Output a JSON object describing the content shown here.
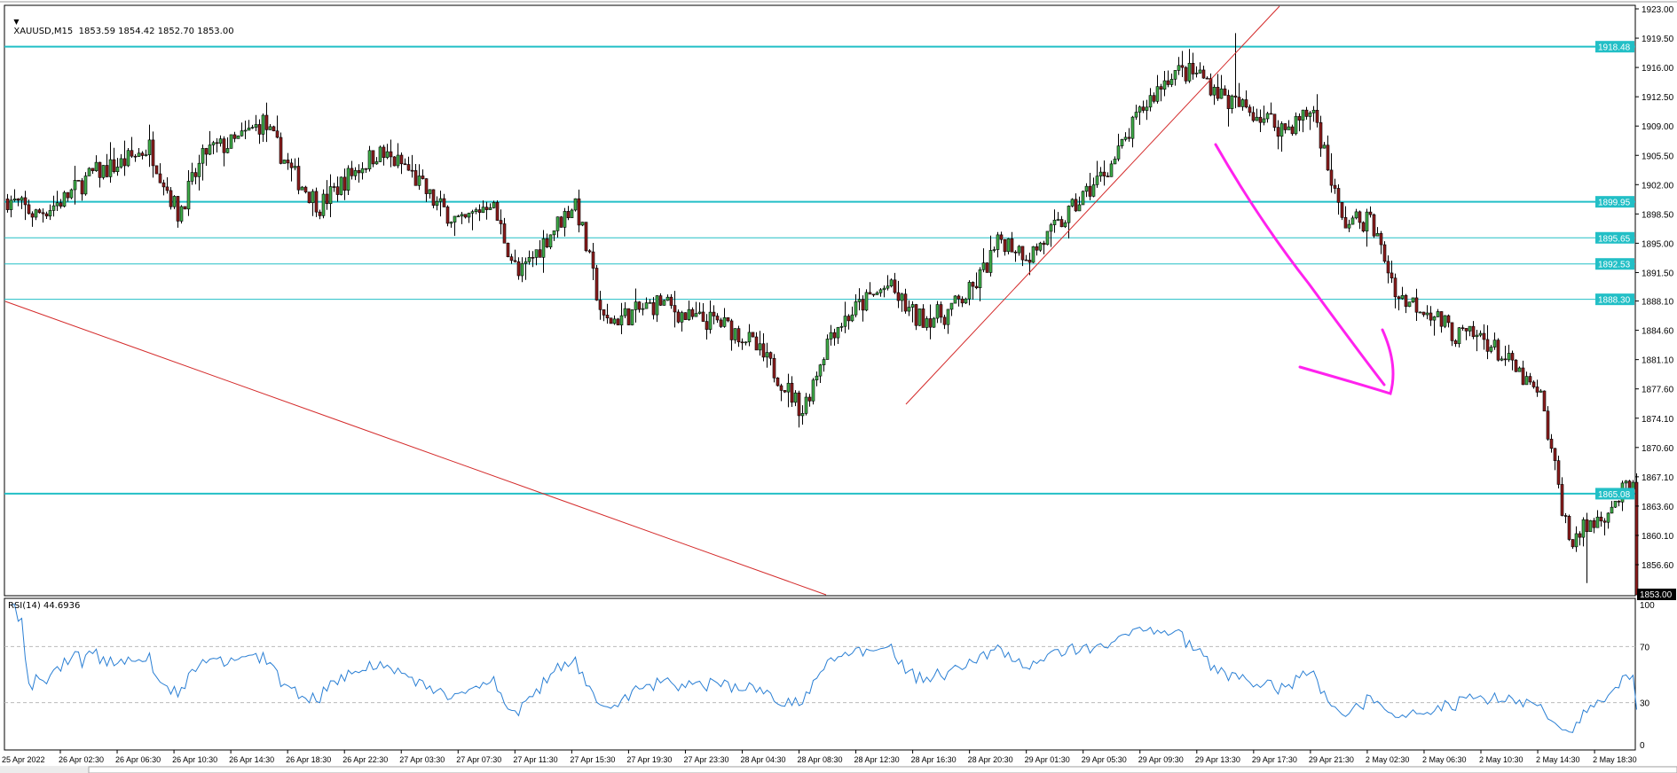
{
  "header": {
    "symbol_info": "XAUUSD,M15  1853.59 1854.42 1852.70 1853.00",
    "dropdown_icon": "triangle-down-icon"
  },
  "rsi": {
    "title": "RSI(14) 44.6936",
    "levels_labels": [
      "100",
      "70",
      "30",
      "0"
    ],
    "levels": [
      100,
      70,
      30,
      0
    ],
    "dashed_levels": [
      70,
      30
    ],
    "line_color": "#2a7fd4"
  },
  "chart_data": {
    "type": "candlestick",
    "timeframe": "M15",
    "ylim": [
      1853.0,
      1923.0
    ],
    "current_price": "1853.00",
    "close_path_every_2h": [
      1900.3,
      1898.4,
      1900.3,
      1903.3,
      1904.5,
      1906.5,
      1898.5,
      1906.0,
      1907.0,
      1909.5,
      1903.5,
      1899.5,
      1903.0,
      1905.8,
      1904.2,
      1900.0,
      1897.2,
      1900.2,
      1891.0,
      1895.7,
      1900.0,
      1885.5,
      1886.6,
      1888.0,
      1886.0,
      1885.6,
      1883.8,
      1879.8,
      1875.0,
      1884.5,
      1887.5,
      1889.9,
      1886.0,
      1886.5,
      1889.5,
      1895.5,
      1893.6,
      1897.0,
      1901.0,
      1905.0,
      1911.2,
      1915.5,
      1915.2,
      1912.0,
      1910.5,
      1908.6,
      1911.0,
      1897.5,
      1897.8,
      1888.5,
      1887.2,
      1884.0,
      1883.7,
      1880.2,
      1876.4,
      1859.5,
      1862.0,
      1865.5
    ],
    "high": 1920.1,
    "low": 1854.4,
    "price_tick_labels": [
      "1923.00",
      "1919.50",
      "1916.00",
      "1912.50",
      "1909.00",
      "1905.50",
      "1902.00",
      "1898.50",
      "1895.00",
      "1891.50",
      "1888.10",
      "1884.60",
      "1881.10",
      "1877.60",
      "1874.10",
      "1870.60",
      "1867.10",
      "1863.60",
      "1860.10",
      "1856.60"
    ],
    "time_tick_labels": [
      "25 Apr 2022",
      "26 Apr 02:30",
      "26 Apr 06:30",
      "26 Apr 10:30",
      "26 Apr 14:30",
      "26 Apr 18:30",
      "26 Apr 22:30",
      "27 Apr 03:30",
      "27 Apr 07:30",
      "27 Apr 11:30",
      "27 Apr 15:30",
      "27 Apr 19:30",
      "27 Apr 23:30",
      "28 Apr 04:30",
      "28 Apr 08:30",
      "28 Apr 12:30",
      "28 Apr 16:30",
      "28 Apr 20:30",
      "29 Apr 01:30",
      "29 Apr 05:30",
      "29 Apr 09:30",
      "29 Apr 13:30",
      "29 Apr 17:30",
      "29 Apr 21:30",
      "2 May 02:30",
      "2 May 06:30",
      "2 May 10:30",
      "2 May 14:30",
      "2 May 18:30"
    ],
    "horizontal_levels": [
      {
        "price": 1918.48,
        "label": "1918.48",
        "thick": true
      },
      {
        "price": 1899.95,
        "label": "1899.95",
        "thick": true
      },
      {
        "price": 1895.65,
        "label": "1895.65",
        "thick": false
      },
      {
        "price": 1892.53,
        "label": "1892.53",
        "thick": false
      },
      {
        "price": 1888.3,
        "label": "1888.30",
        "thick": false
      },
      {
        "price": 1865.08,
        "label": "1865.08",
        "thick": true
      }
    ],
    "colors": {
      "bull": "#3fae49",
      "bear": "#8c1c1c",
      "level_line": "#22bfc6",
      "trendline": "#d42a2a",
      "annotation_arrow": "#ff22ee"
    },
    "grid": false
  }
}
